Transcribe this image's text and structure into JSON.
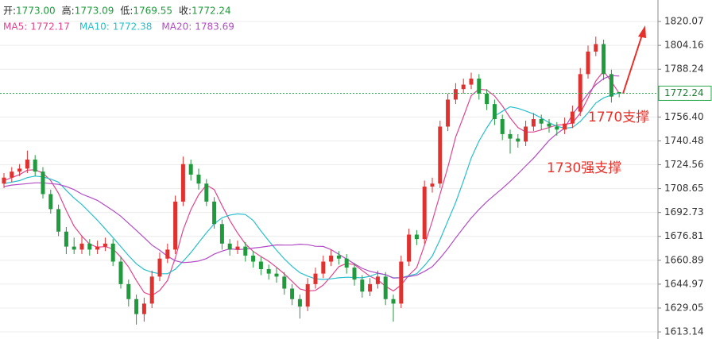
{
  "chart_data": {
    "type": "candlestick",
    "header": [
      {
        "label": "开:",
        "value": "1773.00"
      },
      {
        "label": "高:",
        "value": "1773.09"
      },
      {
        "label": "低:",
        "value": "1769.55"
      },
      {
        "label": "收:",
        "value": "1772.24"
      }
    ],
    "up_color": "#e0312f",
    "down_color": "#1f9a3c",
    "ylim": [
      1608.4,
      1834.4
    ],
    "yticks": [
      1820.07,
      1804.16,
      1788.24,
      {
        "value": 1756.4,
        "label": "1756.40"
      },
      1740.48,
      1724.56,
      1708.65,
      1692.73,
      1676.81,
      1660.89,
      1644.97,
      1629.05,
      1613.14
    ],
    "grid": true,
    "ohlc": [
      [
        1712,
        1719,
        1709,
        1716
      ],
      [
        1716,
        1723,
        1713,
        1720
      ],
      [
        1720,
        1725,
        1717,
        1722
      ],
      [
        1722,
        1734,
        1719,
        1728
      ],
      [
        1728,
        1731,
        1717,
        1720
      ],
      [
        1720,
        1723,
        1702,
        1705
      ],
      [
        1705,
        1708,
        1692,
        1695
      ],
      [
        1695,
        1698,
        1677,
        1680
      ],
      [
        1680,
        1683,
        1665,
        1670
      ],
      [
        1670,
        1676,
        1665,
        1668
      ],
      [
        1668,
        1677,
        1665,
        1672
      ],
      [
        1672,
        1675,
        1664,
        1668
      ],
      [
        1668,
        1674,
        1665,
        1670
      ],
      [
        1670,
        1676,
        1667,
        1672
      ],
      [
        1672,
        1675,
        1657,
        1660
      ],
      [
        1660,
        1663,
        1642,
        1645
      ],
      [
        1645,
        1648,
        1630,
        1635
      ],
      [
        1635,
        1638,
        1618,
        1625
      ],
      [
        1625,
        1636,
        1620,
        1632
      ],
      [
        1632,
        1654,
        1629,
        1650
      ],
      [
        1650,
        1666,
        1647,
        1662
      ],
      [
        1662,
        1672,
        1659,
        1668
      ],
      [
        1668,
        1704,
        1665,
        1700
      ],
      [
        1700,
        1730,
        1697,
        1725
      ],
      [
        1725,
        1728,
        1714,
        1718
      ],
      [
        1718,
        1722,
        1708,
        1712
      ],
      [
        1712,
        1715,
        1697,
        1700
      ],
      [
        1700,
        1703,
        1682,
        1685
      ],
      [
        1685,
        1688,
        1668,
        1672
      ],
      [
        1672,
        1675,
        1664,
        1668
      ],
      [
        1668,
        1674,
        1665,
        1670
      ],
      [
        1670,
        1673,
        1660,
        1664
      ],
      [
        1664,
        1667,
        1656,
        1660
      ],
      [
        1660,
        1663,
        1651,
        1655
      ],
      [
        1655,
        1658,
        1648,
        1652
      ],
      [
        1652,
        1656,
        1646,
        1650
      ],
      [
        1650,
        1653,
        1638,
        1642
      ],
      [
        1642,
        1645,
        1631,
        1635
      ],
      [
        1635,
        1638,
        1622,
        1630
      ],
      [
        1630,
        1649,
        1627,
        1645
      ],
      [
        1645,
        1656,
        1642,
        1652
      ],
      [
        1652,
        1664,
        1649,
        1660
      ],
      [
        1660,
        1668,
        1657,
        1664
      ],
      [
        1664,
        1667,
        1658,
        1662
      ],
      [
        1662,
        1665,
        1652,
        1656
      ],
      [
        1656,
        1659,
        1644,
        1648
      ],
      [
        1648,
        1651,
        1636,
        1640
      ],
      [
        1640,
        1649,
        1637,
        1645
      ],
      [
        1645,
        1654,
        1642,
        1650
      ],
      [
        1650,
        1653,
        1631,
        1635
      ],
      [
        1635,
        1638,
        1620,
        1632
      ],
      [
        1632,
        1664,
        1629,
        1660
      ],
      [
        1660,
        1682,
        1657,
        1678
      ],
      [
        1678,
        1681,
        1671,
        1675
      ],
      [
        1675,
        1714,
        1672,
        1710
      ],
      [
        1710,
        1716,
        1706,
        1712
      ],
      [
        1712,
        1754,
        1709,
        1750
      ],
      [
        1750,
        1772,
        1747,
        1768
      ],
      [
        1768,
        1779,
        1765,
        1775
      ],
      [
        1775,
        1782,
        1772,
        1778
      ],
      [
        1778,
        1786,
        1775,
        1782
      ],
      [
        1782,
        1785,
        1768,
        1772
      ],
      [
        1772,
        1775,
        1761,
        1765
      ],
      [
        1765,
        1768,
        1751,
        1755
      ],
      [
        1755,
        1758,
        1741,
        1745
      ],
      [
        1745,
        1748,
        1732,
        1742
      ],
      [
        1742,
        1745,
        1736,
        1740
      ],
      [
        1740,
        1754,
        1737,
        1750
      ],
      [
        1750,
        1759,
        1747,
        1755
      ],
      [
        1755,
        1758,
        1748,
        1752
      ],
      [
        1752,
        1755,
        1746,
        1750
      ],
      [
        1750,
        1753,
        1744,
        1748
      ],
      [
        1748,
        1756,
        1745,
        1752
      ],
      [
        1752,
        1764,
        1749,
        1760
      ],
      [
        1760,
        1789,
        1757,
        1785
      ],
      [
        1785,
        1804,
        1782,
        1800
      ],
      [
        1800,
        1810,
        1797,
        1805
      ],
      [
        1805,
        1808,
        1781,
        1785
      ],
      [
        1785,
        1788,
        1766,
        1770
      ],
      [
        1773,
        1773.09,
        1769.55,
        1772.24
      ]
    ],
    "series": [
      {
        "name": "MA5:",
        "color": "#e0468f",
        "values": [
          1714,
          1716,
          1718,
          1721,
          1721.2,
          1719,
          1714,
          1705.6,
          1694,
          1683.6,
          1677,
          1671.6,
          1669.6,
          1670,
          1668.4,
          1663,
          1656.4,
          1647.4,
          1639.4,
          1637.4,
          1640.8,
          1647.4,
          1662.4,
          1681,
          1694.6,
          1704.6,
          1711,
          1708,
          1697.4,
          1687.4,
          1679,
          1671.8,
          1666.8,
          1663.4,
          1660.2,
          1656.2,
          1651.8,
          1646.8,
          1641.8,
          1640.4,
          1640.8,
          1644.4,
          1650.2,
          1656.6,
          1658.8,
          1658,
          1654,
          1650.2,
          1647.8,
          1643.6,
          1640.4,
          1644.4,
          1651,
          1656,
          1671,
          1687,
          1705,
          1723,
          1743,
          1756.6,
          1770.6,
          1775,
          1774.4,
          1770.4,
          1763.8,
          1755.8,
          1749.4,
          1746.4,
          1746.4,
          1747.8,
          1749.4,
          1751,
          1751.4,
          1752.4,
          1759,
          1769,
          1780.4,
          1787,
          1780,
          1772.17
        ]
      },
      {
        "name": "MA10:",
        "color": "#27bfcc",
        "values": [
          1712,
          1713,
          1714,
          1716,
          1717,
          1716.5,
          1715,
          1713,
          1707.5,
          1702.4,
          1698,
          1692.8,
          1687.6,
          1681.8,
          1676,
          1670,
          1664,
          1658.5,
          1654.7,
          1652.9,
          1651.9,
          1651.9,
          1654.9,
          1660.2,
          1666,
          1672.7,
          1679.2,
          1685.2,
          1689.2,
          1691,
          1691.8,
          1691.4,
          1687.4,
          1680.4,
          1673.8,
          1667.6,
          1661.8,
          1656.8,
          1652.6,
          1650.3,
          1648.5,
          1648.1,
          1648.5,
          1649.2,
          1649.6,
          1649.4,
          1649.2,
          1650.2,
          1652.2,
          1651.2,
          1649.2,
          1649.2,
          1650.6,
          1651.9,
          1657.3,
          1663.7,
          1674.7,
          1687.1,
          1699.4,
          1713.8,
          1729,
          1740.4,
          1749.2,
          1757,
          1760.2,
          1763.2,
          1762.2,
          1760.4,
          1758.4,
          1755.8,
          1752.6,
          1750.2,
          1748.9,
          1749.4,
          1753.4,
          1759.2,
          1765.7,
          1769.2,
          1771,
          1772.38
        ]
      },
      {
        "name": "MA20:",
        "color": "#b24cc6",
        "values": [
          1710,
          1711,
          1711.5,
          1712,
          1712.5,
          1712.5,
          1712,
          1711.5,
          1710,
          1708,
          1705,
          1703,
          1700.8,
          1697.4,
          1694,
          1690.3,
          1685.5,
          1680.8,
          1676,
          1671,
          1667.5,
          1663.6,
          1660.6,
          1659.3,
          1659.7,
          1660.4,
          1662,
          1665,
          1667,
          1668.5,
          1668,
          1668.3,
          1669,
          1669.6,
          1670.3,
          1671.1,
          1671,
          1671,
          1671.6,
          1671.3,
          1670.2,
          1670.1,
          1668,
          1664.8,
          1661.7,
          1658.5,
          1655.5,
          1653.5,
          1652.4,
          1651.3,
          1649,
          1649.2,
          1650,
          1650.9,
          1653.5,
          1656.6,
          1662.3,
          1668.7,
          1675.8,
          1682.5,
          1689.1,
          1694.8,
          1699.9,
          1704.4,
          1708.8,
          1713.5,
          1718.5,
          1723.8,
          1728.9,
          1734.8,
          1740.8,
          1745.3,
          1749,
          1758,
          1765,
          1772,
          1778,
          1782,
          1784,
          1783.69
        ]
      }
    ],
    "annotations": [
      "1770支撑",
      "1730强支撑"
    ]
  }
}
